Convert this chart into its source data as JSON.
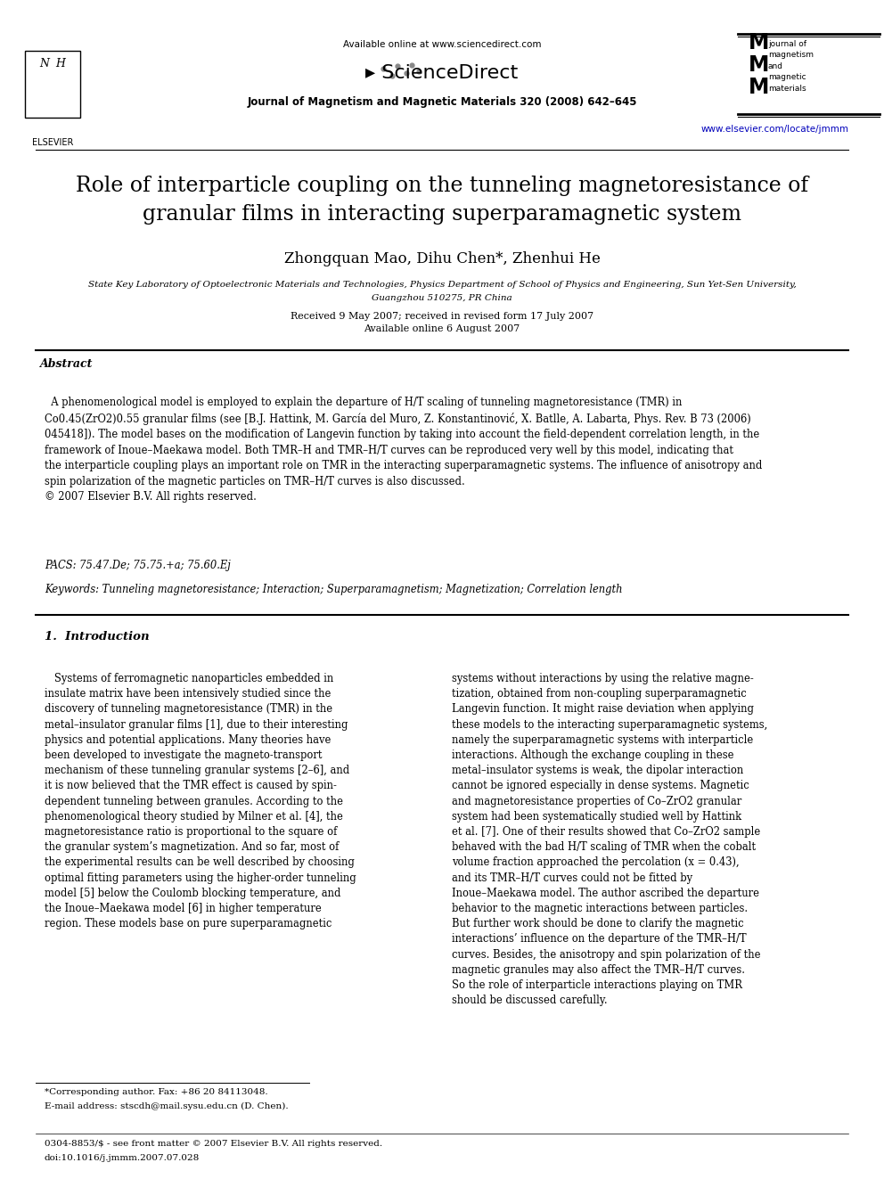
{
  "bg_color": "#ffffff",
  "header_available": "Available online at www.sciencedirect.com",
  "header_journal": "Journal of Magnetism and Magnetic Materials 320 (2008) 642–645",
  "header_url": "www.elsevier.com/locate/jmmm",
  "title": "Role of interparticle coupling on the tunneling magnetoresistance of\ngranular films in interacting superparamagnetic system",
  "authors": "Zhongquan Mao, Dihu Chen*, Zhenhui He",
  "affiliation1": "State Key Laboratory of Optoelectronic Materials and Technologies, Physics Department of School of Physics and Engineering, Sun Yet-Sen University,",
  "affiliation2": "Guangzhou 510275, PR China",
  "dates1": "Received 9 May 2007; received in revised form 17 July 2007",
  "dates2": "Available online 6 August 2007",
  "abstract_label": "Abstract",
  "abstract_text": "  A phenomenological model is employed to explain the departure of H/T scaling of tunneling magnetoresistance (TMR) in\nCo0.45(ZrO2)0.55 granular films (see [B.J. Hattink, M. García del Muro, Z. Konstantinović, X. Batlle, A. Labarta, Phys. Rev. B 73 (2006)\n045418]). The model bases on the modification of Langevin function by taking into account the field-dependent correlation length, in the\nframework of Inoue–Maekawa model. Both TMR–H and TMR–H/T curves can be reproduced very well by this model, indicating that\nthe interparticle coupling plays an important role on TMR in the interacting superparamagnetic systems. The influence of anisotropy and\nspin polarization of the magnetic particles on TMR–H/T curves is also discussed.\n© 2007 Elsevier B.V. All rights reserved.",
  "pacs": "PACS: 75.47.De; 75.75.+a; 75.60.Ej",
  "keywords_label": "Keywords:",
  "keywords_text": "Tunneling magnetoresistance; Interaction; Superparamagnetism; Magnetization; Correlation length",
  "section1_title": "1.  Introduction",
  "section1_col1": "   Systems of ferromagnetic nanoparticles embedded in\ninsulate matrix have been intensively studied since the\ndiscovery of tunneling magnetoresistance (TMR) in the\nmetal–insulator granular films [1], due to their interesting\nphysics and potential applications. Many theories have\nbeen developed to investigate the magneto-transport\nmechanism of these tunneling granular systems [2–6], and\nit is now believed that the TMR effect is caused by spin-\ndependent tunneling between granules. According to the\nphenomenological theory studied by Milner et al. [4], the\nmagnetoresistance ratio is proportional to the square of\nthe granular system’s magnetization. And so far, most of\nthe experimental results can be well described by choosing\noptimal fitting parameters using the higher-order tunneling\nmodel [5] below the Coulomb blocking temperature, and\nthe Inoue–Maekawa model [6] in higher temperature\nregion. These models base on pure superparamagnetic",
  "section1_col2": "systems without interactions by using the relative magne-\ntization, obtained from non-coupling superparamagnetic\nLangevin function. It might raise deviation when applying\nthese models to the interacting superparamagnetic systems,\nnamely the superparamagnetic systems with interparticle\ninteractions. Although the exchange coupling in these\nmetal–insulator systems is weak, the dipolar interaction\ncannot be ignored especially in dense systems. Magnetic\nand magnetoresistance properties of Co–ZrO2 granular\nsystem had been systematically studied well by Hattink\net al. [7]. One of their results showed that Co–ZrO2 sample\nbehaved with the bad H/T scaling of TMR when the cobalt\nvolume fraction approached the percolation (x = 0.43),\nand its TMR–H/T curves could not be fitted by\nInoue–Maekawa model. The author ascribed the departure\nbehavior to the magnetic interactions between particles.\nBut further work should be done to clarify the magnetic\ninteractions’ influence on the departure of the TMR–H/T\ncurves. Besides, the anisotropy and spin polarization of the\nmagnetic granules may also affect the TMR–H/T curves.\nSo the role of interparticle interactions playing on TMR\nshould be discussed carefully.",
  "footnote1": "*Corresponding author. Fax: +86 20 84113048.",
  "footnote2": "E-mail address: stscdh@mail.sysu.edu.cn (D. Chen).",
  "footer1": "0304-8853/$ - see front matter © 2007 Elsevier B.V. All rights reserved.",
  "footer2": "doi:10.1016/j.jmmm.2007.07.028"
}
